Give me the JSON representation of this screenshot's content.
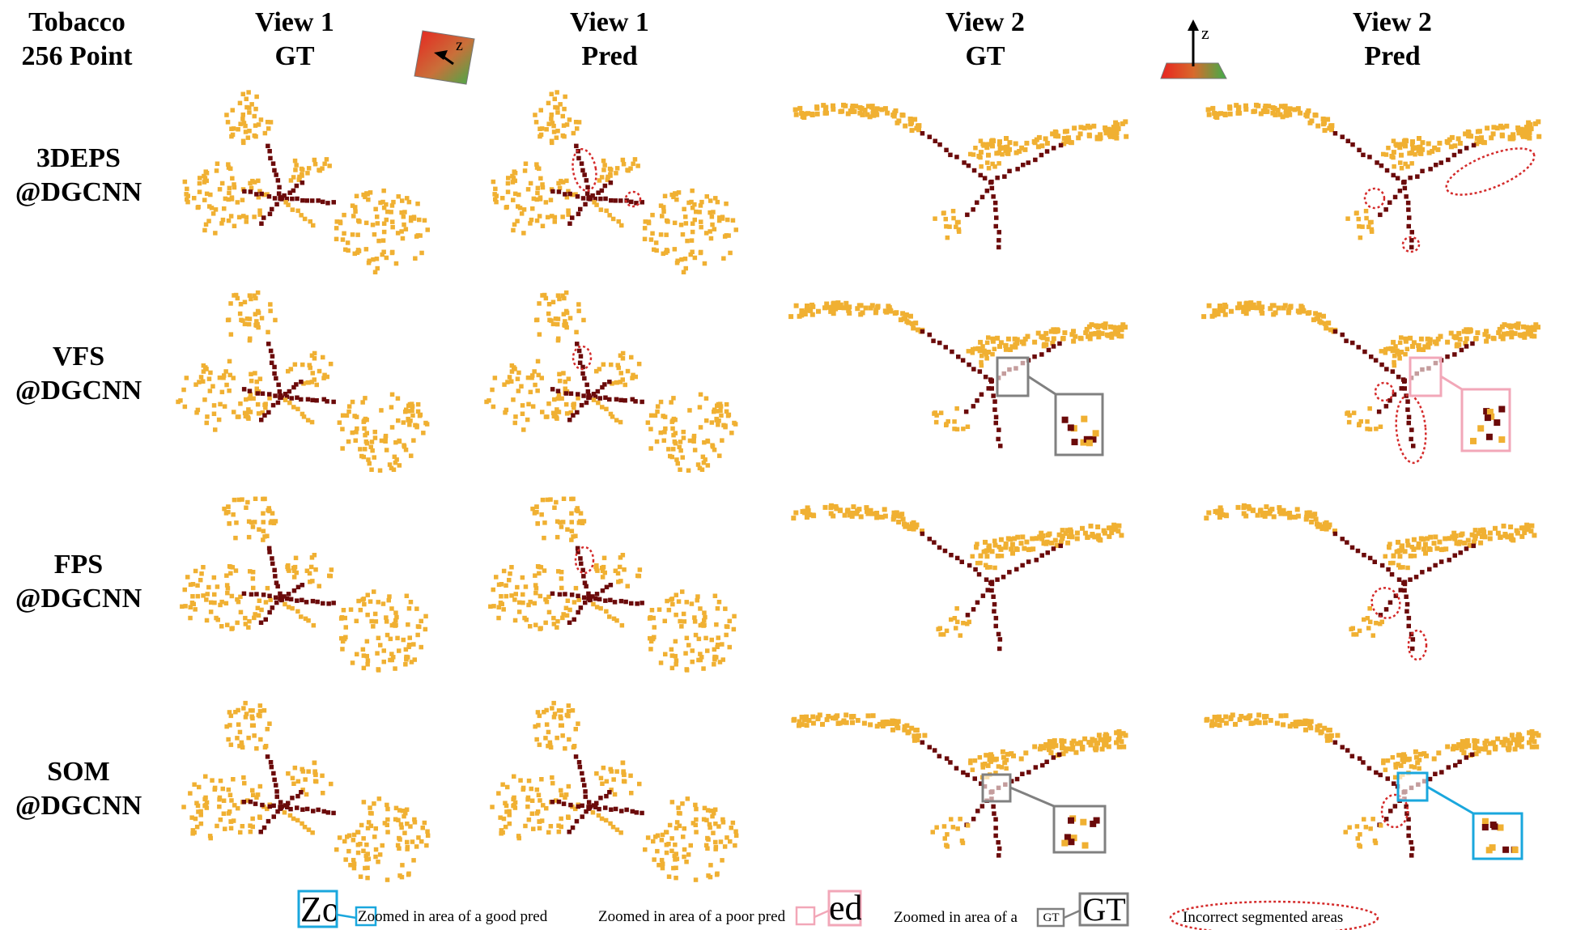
{
  "header": {
    "corner": [
      "Tobacco",
      "256 Point"
    ],
    "cols": [
      [
        "View 1",
        "GT"
      ],
      [
        "View 1",
        "Pred"
      ],
      [
        "View 2",
        "GT"
      ],
      [
        "View 2",
        "Pred"
      ]
    ],
    "axis_label": "z"
  },
  "rows": [
    [
      "3DEPS",
      "@DGCNN"
    ],
    [
      "VFS",
      "@DGCNN"
    ],
    [
      "FPS",
      "@DGCNN"
    ],
    [
      "SOM",
      "@DGCNN"
    ]
  ],
  "legend": {
    "good_box_text": "Zoo",
    "good_label": "Zoomed in area of a good pred",
    "poor_box_text": "ed",
    "poor_label": "Zoomed in area of a poor pred",
    "gt_label": "Zoomed in area of a",
    "gt_box_text": "GT",
    "incorrect_label": "Incorrect segmented areas"
  },
  "colors": {
    "leaf": "#f0b032",
    "stem": "#6b0a0a",
    "incorrect_ellipse": "#d42a2a",
    "zoom_gt": "#808080",
    "zoom_poor": "#f2a7b8",
    "zoom_good": "#1aa7dd"
  }
}
